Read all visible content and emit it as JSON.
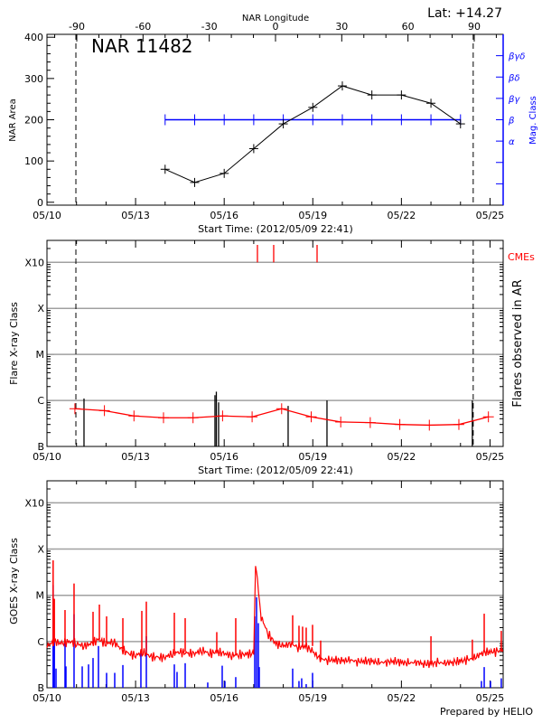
{
  "colors": {
    "axis": "#000000",
    "mag_class": "#0000ff",
    "flare_curve": "#ff0000",
    "cme": "#ff0000",
    "goes_long": "#ff0000",
    "goes_short": "#0000ff",
    "grid": "#a0a0a0"
  },
  "footer": "Prepared by HELIO",
  "chart_data": [
    {
      "type": "line",
      "title": "NAR 11482",
      "top_axis_label": "NAR Longitude",
      "annotation": "Lat: +14.27",
      "xlabel": "Start Time: (2012/05/09 22:41)",
      "ylabel": "NAR Area",
      "y2label": "Mag. Class",
      "xlim": [
        "05/10 00:00",
        "05/25 10:40"
      ],
      "xticks": [
        "05/10",
        "05/13",
        "05/16",
        "05/19",
        "05/22",
        "05/25"
      ],
      "ylim": [
        -7,
        407
      ],
      "yticks": [
        "0",
        "100",
        "200",
        "300",
        "400"
      ],
      "longitude_range": [
        -103.5,
        103.1
      ],
      "longitude_ticks": [
        "-90",
        "-60",
        "-30",
        "0",
        "30",
        "60",
        "90"
      ],
      "mag_class_range": [
        0,
        8
      ],
      "mag_class_ticks": [
        "",
        "",
        "α",
        "β",
        "βγ",
        "βδ",
        "βγδ"
      ],
      "limb_lines": [
        "05/10 23:30",
        "05/24 10:20"
      ],
      "x": [
        "05/14 00:00",
        "05/15 00:00",
        "05/16 00:00",
        "05/17 00:00",
        "05/18 00:00",
        "05/19 00:00",
        "05/20 00:00",
        "05/21 00:00",
        "05/22 00:00",
        "05/23 00:00",
        "05/24 00:00"
      ],
      "area": [
        80,
        48,
        70,
        130,
        190,
        230,
        282,
        260,
        260,
        240,
        190
      ],
      "mag_class": [
        "β",
        "β",
        "β",
        "β",
        "β",
        "β",
        "β",
        "β",
        "β",
        "β",
        "β"
      ]
    },
    {
      "type": "line",
      "xlabel": "Start Time: (2012/05/09 22:41)",
      "ylabel": "Flare X-ray Class",
      "y2label": "Flares observed in AR",
      "cme_label": "CMEs",
      "scale": "log",
      "grid": true,
      "xlim": [
        "05/10 00:00",
        "05/25 10:40"
      ],
      "xticks": [
        "05/10",
        "05/13",
        "05/16",
        "05/19",
        "05/22",
        "05/25"
      ],
      "ylim": [
        1e-07,
        0.003
      ],
      "yticks": [
        "B",
        "C",
        "M",
        "X",
        "X10"
      ],
      "limb_lines": [
        "05/10 23:30",
        "05/24 10:20"
      ],
      "x": [
        "05/10 22:41",
        "05/11 22:41",
        "05/12 22:41",
        "05/13 22:41",
        "05/14 22:41",
        "05/15 22:41",
        "05/16 22:41",
        "05/17 22:41",
        "05/18 22:41",
        "05/19 22:41",
        "05/20 22:41",
        "05/21 22:41",
        "05/22 22:41",
        "05/23 22:41",
        "05/24 22:41"
      ],
      "background_flux": [
        6.6e-07,
        6e-07,
        4.6e-07,
        4.2e-07,
        4.2e-07,
        4.6e-07,
        4.4e-07,
        6.6e-07,
        4.4e-07,
        3.4e-07,
        3.3e-07,
        3e-07,
        2.9e-07,
        3e-07,
        4.4e-07
      ],
      "flares": [
        {
          "t": "05/11 06:05",
          "flux": 1.1e-06
        },
        {
          "t": "05/15 16:30",
          "flux": 1.3e-06
        },
        {
          "t": "05/15 17:37",
          "flux": 1.55e-06
        },
        {
          "t": "05/15 19:27",
          "flux": 9.1e-07
        },
        {
          "t": "05/18 03:57",
          "flux": 7.6e-07
        },
        {
          "t": "05/19 11:31",
          "flux": 1e-06
        },
        {
          "t": "05/24 09:38",
          "flux": 1e-06
        }
      ],
      "cmes": [
        "05/17 03:00",
        "05/17 16:13",
        "05/19 03:28"
      ]
    },
    {
      "type": "line",
      "ylabel": "GOES X-ray Class",
      "scale": "log",
      "grid": true,
      "xlim": [
        "05/10 00:00",
        "05/25 10:40"
      ],
      "xticks": [
        "05/10",
        "05/13",
        "05/16",
        "05/19",
        "05/22",
        "05/25"
      ],
      "ylim": [
        1e-07,
        0.003
      ],
      "yticks": [
        "B",
        "C",
        "M",
        "X",
        "X10"
      ],
      "long_channel": [
        [
          "05/10 00:00",
          8e-07
        ],
        [
          "05/10 06:00",
          1e-06
        ],
        [
          "05/10 12:00",
          9e-07
        ],
        [
          "05/10 18:00",
          1e-06
        ],
        [
          "05/11 00:00",
          9e-07
        ],
        [
          "05/11 06:00",
          8e-07
        ],
        [
          "05/11 12:00",
          9e-07
        ],
        [
          "05/11 18:00",
          1.1e-06
        ],
        [
          "05/12 00:00",
          9e-07
        ],
        [
          "05/12 06:00",
          1e-06
        ],
        [
          "05/12 12:00",
          7e-07
        ],
        [
          "05/12 18:00",
          5.5e-07
        ],
        [
          "05/13 00:00",
          5e-07
        ],
        [
          "05/13 06:00",
          6e-07
        ],
        [
          "05/13 12:00",
          4.8e-07
        ],
        [
          "05/13 18:00",
          4.5e-07
        ],
        [
          "05/14 00:00",
          4.6e-07
        ],
        [
          "05/14 06:00",
          5.5e-07
        ],
        [
          "05/14 12:00",
          6e-07
        ],
        [
          "05/14 18:00",
          5.5e-07
        ],
        [
          "05/15 00:00",
          5.5e-07
        ],
        [
          "05/15 06:00",
          6.5e-07
        ],
        [
          "05/15 12:00",
          5.5e-07
        ],
        [
          "05/15 18:00",
          6e-07
        ],
        [
          "05/16 00:00",
          5.5e-07
        ],
        [
          "05/16 06:00",
          5e-07
        ],
        [
          "05/16 12:00",
          5.2e-07
        ],
        [
          "05/16 18:00",
          5.3e-07
        ],
        [
          "05/17 00:00",
          5.5e-07
        ],
        [
          "05/17 01:30",
          5.1e-05
        ],
        [
          "05/17 03:00",
          2e-05
        ],
        [
          "05/17 06:00",
          3.4e-06
        ],
        [
          "05/17 12:00",
          1.4e-06
        ],
        [
          "05/17 18:00",
          9e-07
        ],
        [
          "05/18 00:00",
          8e-07
        ],
        [
          "05/18 06:00",
          9e-07
        ],
        [
          "05/18 12:00",
          7.5e-07
        ],
        [
          "05/18 18:00",
          8e-07
        ],
        [
          "05/19 00:00",
          6e-07
        ],
        [
          "05/19 06:00",
          4.2e-07
        ],
        [
          "05/19 12:00",
          4e-07
        ],
        [
          "05/19 18:00",
          4e-07
        ],
        [
          "05/20 00:00",
          3.8e-07
        ],
        [
          "05/20 06:00",
          4e-07
        ],
        [
          "05/20 12:00",
          3.7e-07
        ],
        [
          "05/20 18:00",
          3.8e-07
        ],
        [
          "05/21 00:00",
          3.7e-07
        ],
        [
          "05/21 06:00",
          3.5e-07
        ],
        [
          "05/21 12:00",
          3.6e-07
        ],
        [
          "05/21 18:00",
          3.8e-07
        ],
        [
          "05/22 00:00",
          3.5e-07
        ],
        [
          "05/22 06:00",
          3.4e-07
        ],
        [
          "05/22 12:00",
          3.6e-07
        ],
        [
          "05/22 18:00",
          3.3e-07
        ],
        [
          "05/23 00:00",
          3.3e-07
        ],
        [
          "05/23 06:00",
          3.5e-07
        ],
        [
          "05/23 12:00",
          3.4e-07
        ],
        [
          "05/23 18:00",
          3.6e-07
        ],
        [
          "05/24 00:00",
          3.8e-07
        ],
        [
          "05/24 06:00",
          4e-07
        ],
        [
          "05/24 12:00",
          4.5e-07
        ],
        [
          "05/24 18:00",
          5.8e-07
        ],
        [
          "05/25 00:00",
          6e-07
        ],
        [
          "05/25 06:00",
          6e-07
        ],
        [
          "05/25 10:30",
          7e-07
        ]
      ],
      "long_channel_peaks": [
        [
          "05/10 05:00",
          5.7e-05
        ],
        [
          "05/10 06:00",
          8.4e-06
        ],
        [
          "05/10 14:40",
          4.8e-06
        ],
        [
          "05/10 22:00",
          1.8e-05
        ],
        [
          "05/11 13:26",
          4.4e-06
        ],
        [
          "05/11 18:35",
          6.3e-06
        ],
        [
          "05/12 00:26",
          3.5e-06
        ],
        [
          "05/12 13:40",
          3.2e-06
        ],
        [
          "05/13 05:04",
          4.6e-06
        ],
        [
          "05/13 08:44",
          7.3e-06
        ],
        [
          "05/14 07:29",
          4.2e-06
        ],
        [
          "05/14 16:18",
          3.2e-06
        ],
        [
          "05/15 17:58",
          1.6e-06
        ],
        [
          "05/16 09:23",
          3.2e-06
        ],
        [
          "05/18 07:38",
          3.7e-06
        ],
        [
          "05/18 12:46",
          2.2e-06
        ],
        [
          "05/18 15:42",
          2.1e-06
        ],
        [
          "05/18 18:38",
          2e-06
        ],
        [
          "05/18 23:47",
          2.3e-06
        ],
        [
          "05/19 06:23",
          1.05e-06
        ],
        [
          "05/23 00:00",
          1.3e-06
        ],
        [
          "05/24 09:38",
          1.1e-06
        ],
        [
          "05/24 19:16",
          4e-06
        ],
        [
          "05/25 09:09",
          1.7e-06
        ]
      ],
      "short_channel_peaks": [
        [
          "05/10 05:00",
          1.66e-05
        ],
        [
          "05/10 06:00",
          1.1e-06
        ],
        [
          "05/10 07:20",
          2.6e-07
        ],
        [
          "05/10 14:40",
          1.1e-06
        ],
        [
          "05/10 15:25",
          2.9e-07
        ],
        [
          "05/10 22:00",
          3.9e-06
        ],
        [
          "05/11 04:38",
          2.9e-07
        ],
        [
          "05/11 09:46",
          3.2e-07
        ],
        [
          "05/11 13:26",
          4.4e-07
        ],
        [
          "05/11 17:50",
          8e-07
        ],
        [
          "05/12 00:26",
          2.1e-07
        ],
        [
          "05/12 07:03",
          2.1e-07
        ],
        [
          "05/12 13:40",
          3.1e-07
        ],
        [
          "05/13 04:19",
          6.5e-07
        ],
        [
          "05/13 08:44",
          1.3e-06
        ],
        [
          "05/14 07:29",
          3.2e-07
        ],
        [
          "05/14 09:41",
          2.2e-07
        ],
        [
          "05/14 16:18",
          3.4e-07
        ],
        [
          "05/15 10:38",
          1.3e-07
        ],
        [
          "05/15 22:23",
          3e-07
        ],
        [
          "05/16 00:35",
          1.4e-07
        ],
        [
          "05/16 09:23",
          1.7e-07
        ],
        [
          "05/17 00:49",
          3.5e-06
        ],
        [
          "05/17 02:17",
          9.1e-06
        ],
        [
          "05/17 03:45",
          2.5e-06
        ],
        [
          "05/17 04:29",
          2.8e-07
        ],
        [
          "05/18 07:38",
          2.6e-07
        ],
        [
          "05/18 12:46",
          1.4e-07
        ],
        [
          "05/18 14:58",
          1.6e-07
        ],
        [
          "05/18 18:38",
          1.2e-07
        ],
        [
          "05/18 23:47",
          2.1e-07
        ],
        [
          "05/24 17:02",
          1.4e-07
        ],
        [
          "05/24 19:16",
          2.8e-07
        ],
        [
          "05/25 00:22",
          1.4e-07
        ],
        [
          "05/25 09:09",
          1.6e-07
        ]
      ]
    }
  ]
}
